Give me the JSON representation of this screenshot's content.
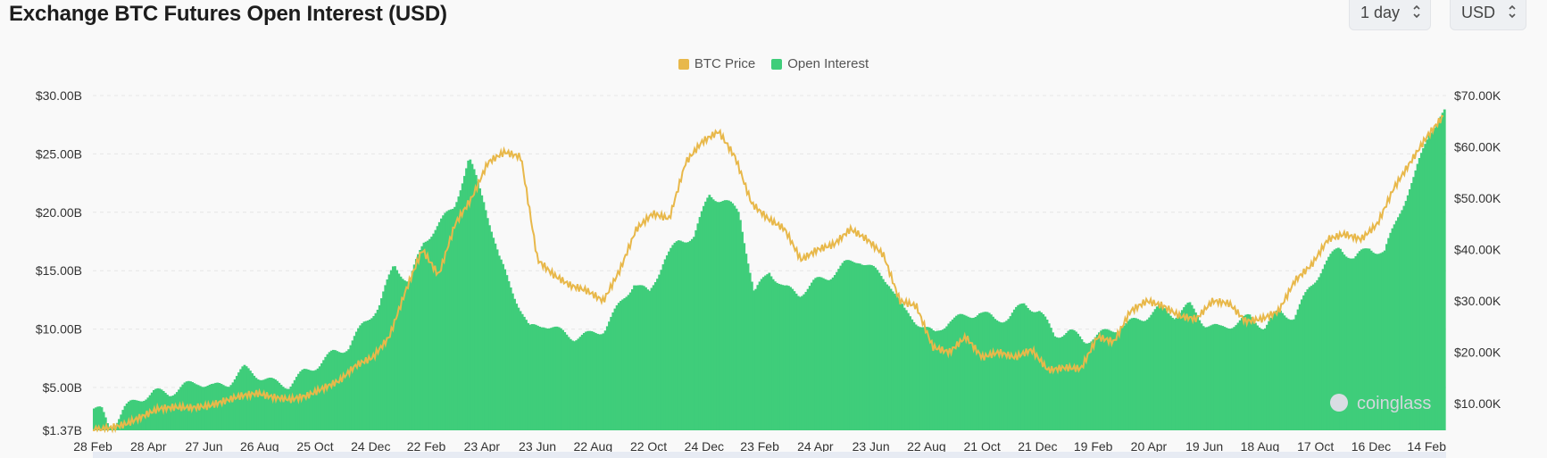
{
  "header": {
    "title": "Exchange BTC Futures Open Interest (USD)",
    "interval_select": "1 day",
    "currency_select": "USD"
  },
  "colors": {
    "btc_price": "#e8b84a",
    "open_interest": "#3fcd7a",
    "grid": "#e6e6e6"
  },
  "watermark": "coinglass",
  "chart_data": {
    "type": "area",
    "legend": [
      "BTC Price",
      "Open Interest"
    ],
    "x_ticks": [
      "28 Feb",
      "28 Apr",
      "27 Jun",
      "26 Aug",
      "25 Oct",
      "24 Dec",
      "22 Feb",
      "23 Apr",
      "23 Jun",
      "22 Aug",
      "22 Oct",
      "24 Dec",
      "23 Feb",
      "24 Apr",
      "23 Jun",
      "22 Aug",
      "21 Oct",
      "21 Dec",
      "19 Feb",
      "20 Apr",
      "19 Jun",
      "18 Aug",
      "17 Oct",
      "16 Dec",
      "14 Feb"
    ],
    "y_left_ticks": [
      "$1.37B",
      "$5.00B",
      "$10.00B",
      "$15.00B",
      "$20.00B",
      "$25.00B",
      "$30.00B"
    ],
    "y_right_ticks": [
      "$10.00K",
      "$20.00K",
      "$30.00K",
      "$40.00K",
      "$50.00K",
      "$60.00K",
      "$70.00K"
    ],
    "y_left_range": [
      1.37,
      30
    ],
    "y_right_range": [
      0,
      70000
    ],
    "grid": "horizontal dashed",
    "legend_position": "top-center",
    "series": [
      {
        "name": "Open Interest",
        "axis": "left",
        "unit": "USD billions",
        "points": [
          [
            0,
            3.2
          ],
          [
            0.5,
            3.0
          ],
          [
            1,
            1.6
          ],
          [
            1.5,
            2.2
          ],
          [
            2,
            3.2
          ],
          [
            3,
            4.0
          ],
          [
            4,
            4.6
          ],
          [
            5,
            4.5
          ],
          [
            6,
            5.1
          ],
          [
            7,
            5.5
          ],
          [
            8,
            5.0
          ],
          [
            9,
            5.4
          ],
          [
            10,
            6.6
          ],
          [
            12,
            5.4
          ],
          [
            13,
            5.2
          ],
          [
            14,
            6.3
          ],
          [
            15,
            7.0
          ],
          [
            16,
            8.0
          ],
          [
            17,
            8.5
          ],
          [
            18,
            10.5
          ],
          [
            19,
            12.0
          ],
          [
            20,
            15.5
          ],
          [
            21,
            14.0
          ],
          [
            22,
            17.5
          ],
          [
            23,
            19.0
          ],
          [
            24,
            20.5
          ],
          [
            25,
            24.5
          ],
          [
            26,
            21.0
          ],
          [
            27,
            16.0
          ],
          [
            28,
            13.0
          ],
          [
            29,
            10.0
          ],
          [
            30,
            10.5
          ],
          [
            31,
            9.8
          ],
          [
            32,
            9.3
          ],
          [
            33,
            9.5
          ],
          [
            34,
            10.0
          ],
          [
            35,
            12.0
          ],
          [
            36,
            14.0
          ],
          [
            37,
            13.0
          ],
          [
            38,
            16.0
          ],
          [
            39,
            17.5
          ],
          [
            40,
            18.0
          ],
          [
            41,
            21.5
          ],
          [
            42,
            21.0
          ],
          [
            43,
            20.0
          ],
          [
            44,
            13.0
          ],
          [
            45,
            15.0
          ],
          [
            46,
            13.5
          ],
          [
            47,
            13.0
          ],
          [
            48,
            14.0
          ],
          [
            49,
            14.5
          ],
          [
            50,
            15.5
          ],
          [
            51,
            16.0
          ],
          [
            52,
            15.0
          ],
          [
            53,
            14.0
          ],
          [
            54,
            11.5
          ],
          [
            55,
            10.5
          ],
          [
            56,
            9.5
          ],
          [
            57,
            10.8
          ],
          [
            58,
            11.0
          ],
          [
            59,
            11.5
          ],
          [
            60,
            10.8
          ],
          [
            61,
            11.0
          ],
          [
            62,
            12.2
          ],
          [
            63,
            11.5
          ],
          [
            64,
            9.5
          ],
          [
            65,
            9.8
          ],
          [
            66,
            9.0
          ],
          [
            67,
            9.5
          ],
          [
            68,
            10.0
          ],
          [
            69,
            10.5
          ],
          [
            70,
            11.0
          ],
          [
            71,
            11.8
          ],
          [
            72,
            11.2
          ],
          [
            73,
            12.0
          ],
          [
            74,
            10.5
          ],
          [
            75,
            10.0
          ],
          [
            76,
            10.5
          ],
          [
            77,
            11.0
          ],
          [
            78,
            10.2
          ],
          [
            79,
            11.5
          ],
          [
            80,
            11.0
          ],
          [
            81,
            13.5
          ],
          [
            82,
            15.5
          ],
          [
            83,
            17.0
          ],
          [
            84,
            16.0
          ],
          [
            85,
            17.0
          ],
          [
            86,
            16.5
          ],
          [
            87,
            20.0
          ],
          [
            88,
            23.0
          ],
          [
            89,
            27.0
          ],
          [
            90,
            28.5
          ]
        ]
      },
      {
        "name": "BTC Price",
        "axis": "right",
        "unit": "USD",
        "points": [
          [
            0,
            4800
          ],
          [
            0.5,
            5000
          ],
          [
            1,
            5200
          ],
          [
            2,
            6000
          ],
          [
            3,
            7500
          ],
          [
            4,
            9000
          ],
          [
            5,
            9300
          ],
          [
            6,
            9200
          ],
          [
            7,
            9500
          ],
          [
            8,
            10500
          ],
          [
            9,
            11500
          ],
          [
            10,
            12000
          ],
          [
            11,
            11200
          ],
          [
            12,
            10800
          ],
          [
            13,
            11500
          ],
          [
            14,
            13000
          ],
          [
            15,
            14500
          ],
          [
            16,
            17500
          ],
          [
            17,
            19000
          ],
          [
            18,
            23000
          ],
          [
            19,
            32000
          ],
          [
            20,
            40000
          ],
          [
            21,
            35000
          ],
          [
            22,
            45000
          ],
          [
            23,
            50000
          ],
          [
            24,
            57000
          ],
          [
            25,
            59000
          ],
          [
            26,
            58000
          ],
          [
            27,
            38000
          ],
          [
            28,
            35000
          ],
          [
            29,
            33000
          ],
          [
            30,
            32000
          ],
          [
            31,
            30000
          ],
          [
            32,
            36000
          ],
          [
            33,
            44000
          ],
          [
            34,
            47000
          ],
          [
            35,
            46000
          ],
          [
            36,
            57000
          ],
          [
            37,
            61000
          ],
          [
            38,
            63000
          ],
          [
            39,
            58000
          ],
          [
            40,
            49000
          ],
          [
            41,
            46000
          ],
          [
            42,
            44000
          ],
          [
            43,
            38000
          ],
          [
            44,
            40000
          ],
          [
            45,
            41000
          ],
          [
            46,
            44000
          ],
          [
            47,
            42000
          ],
          [
            48,
            39000
          ],
          [
            49,
            30000
          ],
          [
            50,
            29000
          ],
          [
            51,
            21000
          ],
          [
            52,
            20000
          ],
          [
            53,
            23000
          ],
          [
            54,
            19000
          ],
          [
            55,
            20000
          ],
          [
            56,
            19000
          ],
          [
            57,
            20500
          ],
          [
            58,
            16500
          ],
          [
            59,
            17000
          ],
          [
            60,
            16800
          ],
          [
            61,
            23000
          ],
          [
            62,
            22000
          ],
          [
            63,
            28000
          ],
          [
            64,
            30000
          ],
          [
            65,
            29000
          ],
          [
            66,
            27000
          ],
          [
            67,
            26500
          ],
          [
            68,
            30000
          ],
          [
            69,
            29500
          ],
          [
            70,
            26000
          ],
          [
            71,
            26500
          ],
          [
            72,
            28000
          ],
          [
            73,
            34000
          ],
          [
            74,
            37000
          ],
          [
            75,
            42000
          ],
          [
            76,
            43000
          ],
          [
            77,
            42000
          ],
          [
            78,
            45000
          ],
          [
            79,
            52000
          ],
          [
            80,
            57000
          ],
          [
            81,
            62000
          ],
          [
            82,
            66000
          ]
        ]
      }
    ]
  }
}
